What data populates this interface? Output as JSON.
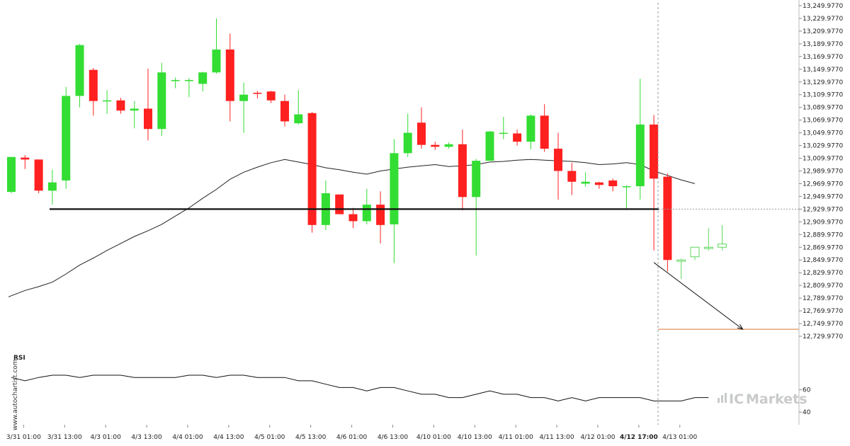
{
  "chart_data": [
    {
      "type": "candlestick",
      "title": "",
      "price_ticks": [
        "13,249.9770",
        "13,229.9770",
        "13,209.9770",
        "13,189.9770",
        "13,169.9770",
        "13,149.9770",
        "13,129.9770",
        "13,109.9770",
        "13,089.9770",
        "13,069.9770",
        "13,049.9770",
        "13,029.9770",
        "13,009.9770",
        "12,989.9770",
        "12,969.9770",
        "12,949.9770",
        "12,929.9770",
        "12,909.9770",
        "12,889.9770",
        "12,869.9770",
        "12,849.9770",
        "12,829.9770",
        "12,809.9770",
        "12,789.9770",
        "12,769.9770",
        "12,749.9770",
        "12,729.9770"
      ],
      "ylim": [
        12720,
        13255
      ],
      "x_ticks": [
        {
          "label": "3/31 01:00",
          "index": 0.9
        },
        {
          "label": "3/31 13:00",
          "index": 3.9
        },
        {
          "label": "4/3 01:00",
          "index": 6.9
        },
        {
          "label": "4/3 13:00",
          "index": 9.9
        },
        {
          "label": "4/4 01:00",
          "index": 12.9
        },
        {
          "label": "4/4 13:00",
          "index": 15.9
        },
        {
          "label": "4/5 01:00",
          "index": 18.9
        },
        {
          "label": "4/5 13:00",
          "index": 21.9
        },
        {
          "label": "4/6 01:00",
          "index": 24.9
        },
        {
          "label": "4/6 13:00",
          "index": 27.9
        },
        {
          "label": "4/10 01:00",
          "index": 30.9
        },
        {
          "label": "4/10 13:00",
          "index": 33.9
        },
        {
          "label": "4/11 01:00",
          "index": 36.9
        },
        {
          "label": "4/11 13:00",
          "index": 39.9
        },
        {
          "label": "4/12 01:00",
          "index": 42.9
        },
        {
          "label": "4/12 17:00",
          "index": 45.9,
          "highlight": true
        },
        {
          "label": "4/13 01:00",
          "index": 48.9
        }
      ],
      "candles": [
        {
          "o": 12957,
          "h": 13012,
          "l": 12955,
          "c": 13012
        },
        {
          "o": 13011,
          "h": 13015,
          "l": 12993,
          "c": 13008
        },
        {
          "o": 13008,
          "h": 13008,
          "l": 12955,
          "c": 12959
        },
        {
          "o": 12959,
          "h": 12992,
          "l": 12937,
          "c": 12972
        },
        {
          "o": 12975,
          "h": 13122,
          "l": 12962,
          "c": 13108
        },
        {
          "o": 13108,
          "h": 13190,
          "l": 13090,
          "c": 13188
        },
        {
          "o": 13149,
          "h": 13152,
          "l": 13077,
          "c": 13100
        },
        {
          "o": 13101,
          "h": 13117,
          "l": 13080,
          "c": 13101
        },
        {
          "o": 13101,
          "h": 13105,
          "l": 13080,
          "c": 13085
        },
        {
          "o": 13085,
          "h": 13100,
          "l": 13057,
          "c": 13088
        },
        {
          "o": 13088,
          "h": 13151,
          "l": 13038,
          "c": 13056
        },
        {
          "o": 13056,
          "h": 13160,
          "l": 13045,
          "c": 13145
        },
        {
          "o": 13132,
          "h": 13137,
          "l": 13120,
          "c": 13133
        },
        {
          "o": 13132,
          "h": 13136,
          "l": 13106,
          "c": 13133
        },
        {
          "o": 13127,
          "h": 13146,
          "l": 13115,
          "c": 13145
        },
        {
          "o": 13145,
          "h": 13230,
          "l": 13143,
          "c": 13181
        },
        {
          "o": 13181,
          "h": 13206,
          "l": 13068,
          "c": 13100
        },
        {
          "o": 13100,
          "h": 13129,
          "l": 13050,
          "c": 13110
        },
        {
          "o": 13113,
          "h": 13116,
          "l": 13104,
          "c": 13112
        },
        {
          "o": 13115,
          "h": 13116,
          "l": 13097,
          "c": 13101
        },
        {
          "o": 13100,
          "h": 13110,
          "l": 13060,
          "c": 13068
        },
        {
          "o": 13065,
          "h": 13117,
          "l": 13063,
          "c": 13079
        },
        {
          "o": 13081,
          "h": 13083,
          "l": 12893,
          "c": 12905
        },
        {
          "o": 12905,
          "h": 12975,
          "l": 12897,
          "c": 12955
        },
        {
          "o": 12953,
          "h": 12953,
          "l": 12922,
          "c": 12922
        },
        {
          "o": 12922,
          "h": 12932,
          "l": 12900,
          "c": 12911
        },
        {
          "o": 12911,
          "h": 12962,
          "l": 12906,
          "c": 12937
        },
        {
          "o": 12937,
          "h": 12958,
          "l": 12876,
          "c": 12905
        },
        {
          "o": 12906,
          "h": 13040,
          "l": 12845,
          "c": 13018
        },
        {
          "o": 13018,
          "h": 13080,
          "l": 13012,
          "c": 13050
        },
        {
          "o": 13066,
          "h": 13090,
          "l": 13025,
          "c": 13031
        },
        {
          "o": 13031,
          "h": 13036,
          "l": 13023,
          "c": 13028
        },
        {
          "o": 13028,
          "h": 13035,
          "l": 13025,
          "c": 13032
        },
        {
          "o": 13032,
          "h": 13055,
          "l": 12928,
          "c": 12949
        },
        {
          "o": 12949,
          "h": 13009,
          "l": 12857,
          "c": 13006
        },
        {
          "o": 13006,
          "h": 13053,
          "l": 13006,
          "c": 13052
        },
        {
          "o": 13050,
          "h": 13075,
          "l": 13040,
          "c": 13050
        },
        {
          "o": 13049,
          "h": 13055,
          "l": 13030,
          "c": 13036
        },
        {
          "o": 13036,
          "h": 13079,
          "l": 13024,
          "c": 13077
        },
        {
          "o": 13077,
          "h": 13095,
          "l": 13020,
          "c": 13025
        },
        {
          "o": 13025,
          "h": 13050,
          "l": 12945,
          "c": 12990
        },
        {
          "o": 12990,
          "h": 13003,
          "l": 12952,
          "c": 12973
        },
        {
          "o": 12970,
          "h": 12988,
          "l": 12965,
          "c": 12973
        },
        {
          "o": 12972,
          "h": 12973,
          "l": 12962,
          "c": 12968
        },
        {
          "o": 12975,
          "h": 12978,
          "l": 12958,
          "c": 12966
        },
        {
          "o": 12966,
          "h": 12967,
          "l": 12930,
          "c": 12966
        },
        {
          "o": 12966,
          "h": 13135,
          "l": 12945,
          "c": 13063
        },
        {
          "o": 13063,
          "h": 13078,
          "l": 12865,
          "c": 12978
        },
        {
          "o": 12981,
          "h": 12986,
          "l": 12832,
          "c": 12850
        },
        {
          "o": 12848,
          "h": 12852,
          "l": 12820,
          "c": 12850
        },
        {
          "o": 12855,
          "h": 12870,
          "l": 12850,
          "c": 12870
        },
        {
          "o": 12868,
          "h": 12900,
          "l": 12865,
          "c": 12870
        },
        {
          "o": 12870,
          "h": 12905,
          "l": 12865,
          "c": 12875
        }
      ],
      "moving_average": [
        12792,
        12802,
        12808,
        12815,
        12828,
        12842,
        12853,
        12865,
        12876,
        12887,
        12896,
        12906,
        12919,
        12932,
        12947,
        12961,
        12977,
        12988,
        12996,
        13003,
        13008,
        13004,
        13000,
        12995,
        12992,
        12988,
        12985,
        12990,
        12993,
        12996,
        12998,
        13000,
        12997,
        12998,
        13000,
        13004,
        13005,
        13007,
        13008,
        13007,
        13006,
        13005,
        13003,
        13000,
        13001,
        13003,
        13000,
        12990,
        12983,
        12976,
        12970
      ],
      "support_level": 12930.0,
      "support_label": "12,929.9770",
      "projection": {
        "from_index": 47.0,
        "from_price": 12846,
        "to_index": 53.5,
        "to_price": 12741
      },
      "target_level": 12741,
      "bullish_color": "#33dd33",
      "bearish_color": "#ff2020",
      "projected_candle_color": "#5cd65c",
      "target_line_color": "#e0915c"
    },
    {
      "type": "line",
      "title": "RSI",
      "yticks": [
        "60",
        "40"
      ],
      "ylim": [
        30,
        92
      ],
      "values": [
        71,
        68,
        71,
        73,
        73,
        71,
        73,
        73,
        73,
        71,
        71,
        71,
        71,
        73,
        73,
        71,
        73,
        73,
        71,
        71,
        71,
        68,
        68,
        65,
        62,
        62,
        59,
        62,
        62,
        59,
        56,
        56,
        53,
        53,
        56,
        59,
        56,
        56,
        53,
        53,
        50,
        53,
        50,
        53,
        53,
        53,
        53,
        50,
        50,
        50,
        53,
        53
      ]
    }
  ],
  "watermark": "www.autochartist.com",
  "brand": {
    "prefix": "IC",
    "suffix": "Markets"
  }
}
